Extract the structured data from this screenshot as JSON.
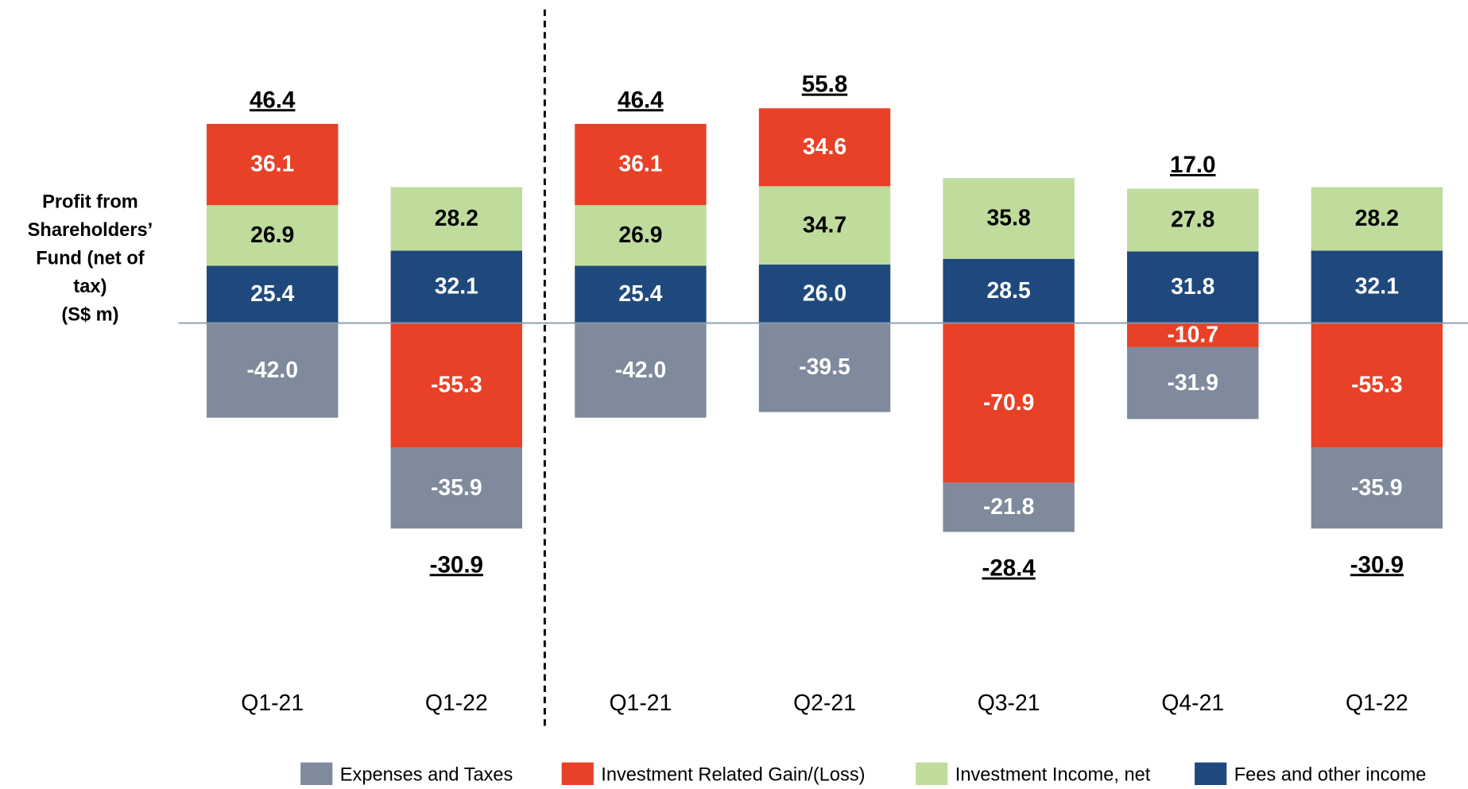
{
  "chart_data": {
    "type": "stacked_bar",
    "ylabel": [
      "Profit from",
      "Shareholders’",
      "Fund (net of",
      "tax)",
      "(S$ m)"
    ],
    "categories": [
      "Q1-21",
      "Q1-22",
      "Q1-21",
      "Q2-21",
      "Q3-21",
      "Q4-21",
      "Q1-22"
    ],
    "series": [
      {
        "name": "Expenses and Taxes",
        "color": "#7f8b9c",
        "label_color": "#ffffff",
        "values": [
          -42.0,
          -35.9,
          -42.0,
          -39.5,
          -21.8,
          -31.9,
          -35.9
        ],
        "value_labels": [
          "-42.0",
          "-35.9",
          "-42.0",
          "-39.5",
          "-21.8",
          "-31.9",
          "-35.9"
        ]
      },
      {
        "name": "Investment Related Gain/(Loss)",
        "color": "#e84127",
        "label_color": "#ffffff",
        "values": [
          36.1,
          -55.3,
          36.1,
          34.6,
          -70.9,
          -10.7,
          -55.3
        ],
        "value_labels": [
          "36.1",
          "-55.3",
          "36.1",
          "34.6",
          "-70.9",
          "-10.7",
          "-55.3"
        ]
      },
      {
        "name": "Investment Income, net",
        "color": "#bfdc9d",
        "label_color": "#000000",
        "values": [
          26.9,
          28.2,
          26.9,
          34.7,
          35.8,
          27.8,
          28.2
        ],
        "value_labels": [
          "26.9",
          "28.2",
          "26.9",
          "34.7",
          "35.8",
          "27.8",
          "28.2"
        ]
      },
      {
        "name": "Fees and other income",
        "color": "#1f497d",
        "label_color": "#ffffff",
        "values": [
          25.4,
          32.1,
          25.4,
          26.0,
          28.5,
          31.8,
          32.1
        ],
        "value_labels": [
          "25.4",
          "32.1",
          "25.4",
          "26.0",
          "28.5",
          "31.8",
          "32.1"
        ]
      }
    ],
    "totals": [
      46.4,
      -30.9,
      46.4,
      55.8,
      -28.4,
      17.0,
      -30.9
    ],
    "total_labels": [
      "46.4",
      "-30.9",
      "46.4",
      "55.8",
      "-28.4",
      "17.0",
      "-30.9"
    ],
    "ylim": [
      -130,
      140
    ]
  }
}
